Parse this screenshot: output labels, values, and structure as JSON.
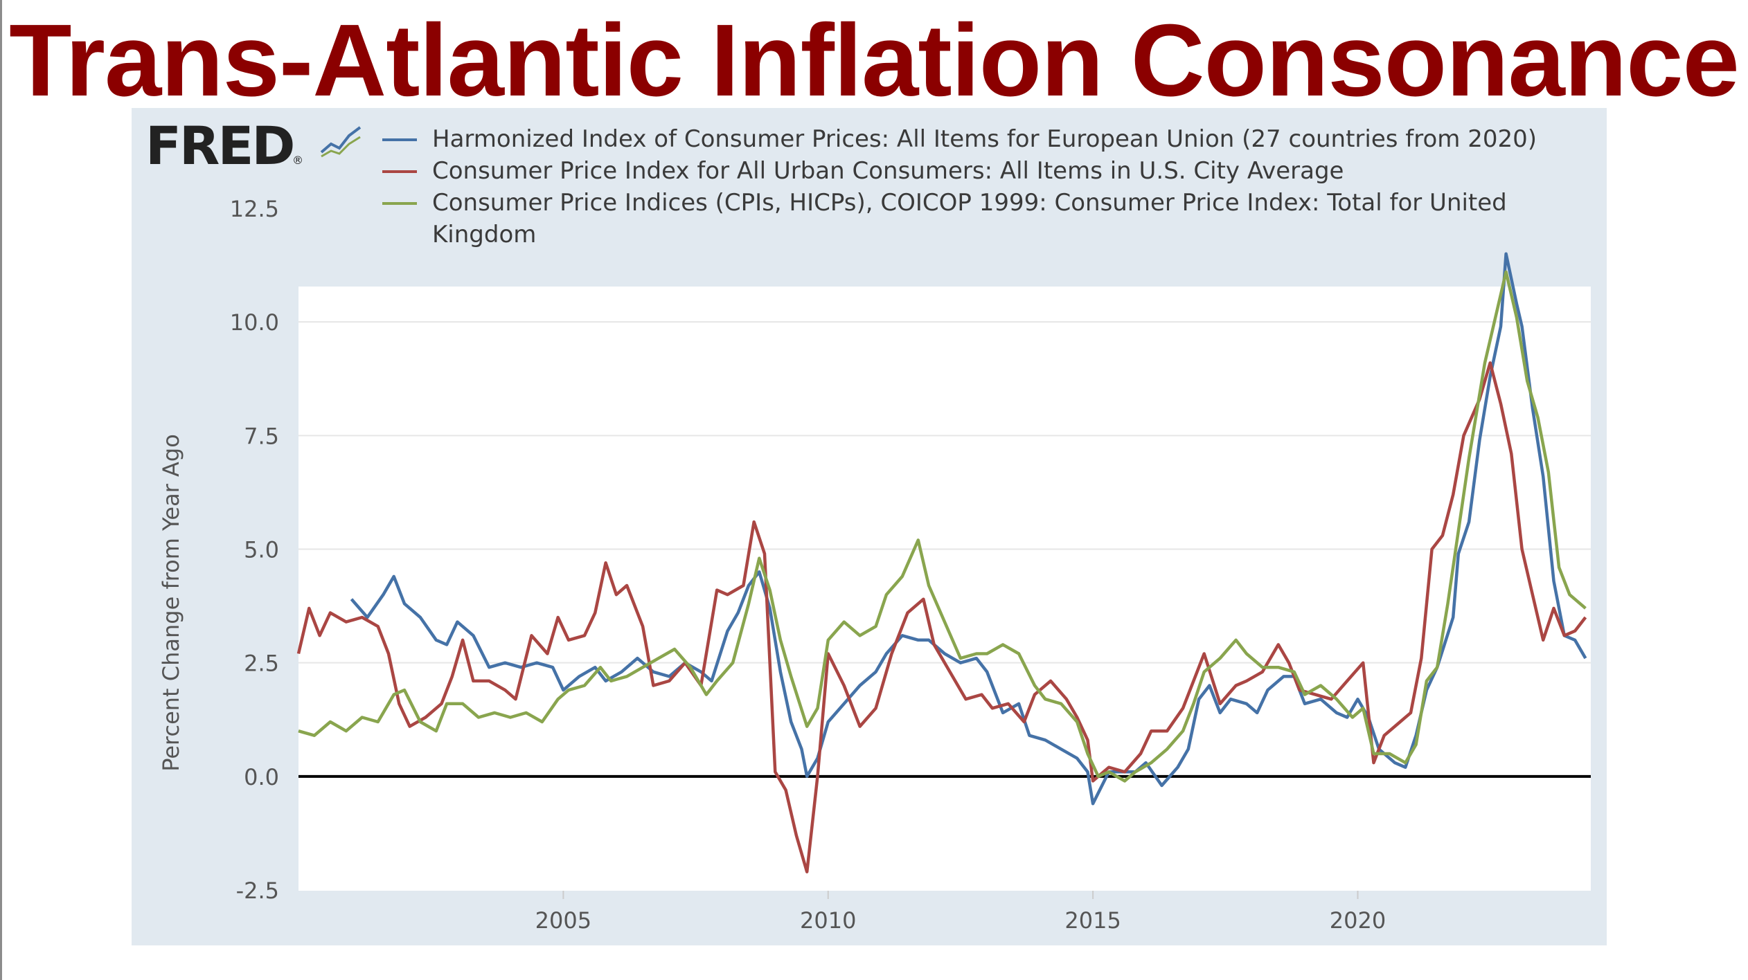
{
  "slide_title": "Trans-Atlantic Inflation Consonance",
  "fred_logo": "FRED",
  "colors": {
    "title": "#8b0000",
    "eu": "#4572a7",
    "us": "#aa4643",
    "uk": "#89a54e",
    "panel": "#e1e9f0"
  },
  "chart_data": {
    "type": "line",
    "title": "",
    "xlabel": "",
    "ylabel": "Percent Change from Year Ago",
    "xlim": [
      2000.0,
      2024.4
    ],
    "ylim": [
      -2.5,
      12.5
    ],
    "yticks": [
      -2.5,
      0.0,
      2.5,
      5.0,
      7.5,
      10.0,
      12.5
    ],
    "ytick_labels": [
      "-2.5",
      "0.0",
      "2.5",
      "5.0",
      "7.5",
      "10.0",
      "12.5"
    ],
    "xticks": [
      2005,
      2010,
      2015,
      2020
    ],
    "xtick_labels": [
      "2005",
      "2010",
      "2015",
      "2020"
    ],
    "zero_line": true,
    "legend_position": "top",
    "series": [
      {
        "name": "Harmonized Index of Consumer Prices: All Items for European Union (27 countries from 2020)",
        "color": "#4572a7",
        "points": [
          [
            2001.0,
            3.9
          ],
          [
            2001.3,
            3.5
          ],
          [
            2001.6,
            4.0
          ],
          [
            2001.8,
            4.4
          ],
          [
            2002.0,
            3.8
          ],
          [
            2002.3,
            3.5
          ],
          [
            2002.6,
            3.0
          ],
          [
            2002.8,
            2.9
          ],
          [
            2003.0,
            3.4
          ],
          [
            2003.3,
            3.1
          ],
          [
            2003.6,
            2.4
          ],
          [
            2003.9,
            2.5
          ],
          [
            2004.2,
            2.4
          ],
          [
            2004.5,
            2.5
          ],
          [
            2004.8,
            2.4
          ],
          [
            2005.0,
            1.9
          ],
          [
            2005.3,
            2.2
          ],
          [
            2005.6,
            2.4
          ],
          [
            2005.8,
            2.1
          ],
          [
            2006.1,
            2.3
          ],
          [
            2006.4,
            2.6
          ],
          [
            2006.7,
            2.3
          ],
          [
            2007.0,
            2.2
          ],
          [
            2007.3,
            2.5
          ],
          [
            2007.6,
            2.3
          ],
          [
            2007.8,
            2.1
          ],
          [
            2008.1,
            3.2
          ],
          [
            2008.3,
            3.6
          ],
          [
            2008.5,
            4.2
          ],
          [
            2008.7,
            4.5
          ],
          [
            2008.9,
            3.7
          ],
          [
            2009.1,
            2.3
          ],
          [
            2009.3,
            1.2
          ],
          [
            2009.5,
            0.6
          ],
          [
            2009.6,
            0.0
          ],
          [
            2009.8,
            0.4
          ],
          [
            2010.0,
            1.2
          ],
          [
            2010.3,
            1.6
          ],
          [
            2010.6,
            2.0
          ],
          [
            2010.9,
            2.3
          ],
          [
            2011.1,
            2.7
          ],
          [
            2011.4,
            3.1
          ],
          [
            2011.7,
            3.0
          ],
          [
            2011.9,
            3.0
          ],
          [
            2012.2,
            2.7
          ],
          [
            2012.5,
            2.5
          ],
          [
            2012.8,
            2.6
          ],
          [
            2013.0,
            2.3
          ],
          [
            2013.3,
            1.4
          ],
          [
            2013.6,
            1.6
          ],
          [
            2013.8,
            0.9
          ],
          [
            2014.1,
            0.8
          ],
          [
            2014.4,
            0.6
          ],
          [
            2014.7,
            0.4
          ],
          [
            2014.9,
            0.1
          ],
          [
            2015.0,
            -0.6
          ],
          [
            2015.3,
            0.1
          ],
          [
            2015.6,
            0.1
          ],
          [
            2015.8,
            0.1
          ],
          [
            2016.0,
            0.3
          ],
          [
            2016.3,
            -0.2
          ],
          [
            2016.6,
            0.2
          ],
          [
            2016.8,
            0.6
          ],
          [
            2017.0,
            1.7
          ],
          [
            2017.2,
            2.0
          ],
          [
            2017.4,
            1.4
          ],
          [
            2017.6,
            1.7
          ],
          [
            2017.9,
            1.6
          ],
          [
            2018.1,
            1.4
          ],
          [
            2018.3,
            1.9
          ],
          [
            2018.6,
            2.2
          ],
          [
            2018.8,
            2.2
          ],
          [
            2019.0,
            1.6
          ],
          [
            2019.3,
            1.7
          ],
          [
            2019.6,
            1.4
          ],
          [
            2019.8,
            1.3
          ],
          [
            2020.0,
            1.7
          ],
          [
            2020.2,
            1.3
          ],
          [
            2020.4,
            0.6
          ],
          [
            2020.7,
            0.3
          ],
          [
            2020.9,
            0.2
          ],
          [
            2021.1,
            0.9
          ],
          [
            2021.3,
            1.9
          ],
          [
            2021.5,
            2.4
          ],
          [
            2021.8,
            3.5
          ],
          [
            2021.9,
            4.9
          ],
          [
            2022.1,
            5.6
          ],
          [
            2022.3,
            7.4
          ],
          [
            2022.5,
            8.8
          ],
          [
            2022.7,
            9.9
          ],
          [
            2022.8,
            11.5
          ],
          [
            2023.0,
            10.4
          ],
          [
            2023.1,
            9.9
          ],
          [
            2023.3,
            8.1
          ],
          [
            2023.5,
            6.6
          ],
          [
            2023.7,
            4.3
          ],
          [
            2023.9,
            3.1
          ],
          [
            2024.1,
            3.0
          ],
          [
            2024.3,
            2.6
          ]
        ]
      },
      {
        "name": "Consumer Price Index for All Urban Consumers: All Items in U.S. City Average",
        "color": "#aa4643",
        "points": [
          [
            2000.0,
            2.7
          ],
          [
            2000.2,
            3.7
          ],
          [
            2000.4,
            3.1
          ],
          [
            2000.6,
            3.6
          ],
          [
            2000.9,
            3.4
          ],
          [
            2001.2,
            3.5
          ],
          [
            2001.5,
            3.3
          ],
          [
            2001.7,
            2.7
          ],
          [
            2001.9,
            1.6
          ],
          [
            2002.1,
            1.1
          ],
          [
            2002.4,
            1.3
          ],
          [
            2002.7,
            1.6
          ],
          [
            2002.9,
            2.2
          ],
          [
            2003.1,
            3.0
          ],
          [
            2003.3,
            2.1
          ],
          [
            2003.6,
            2.1
          ],
          [
            2003.9,
            1.9
          ],
          [
            2004.1,
            1.7
          ],
          [
            2004.4,
            3.1
          ],
          [
            2004.7,
            2.7
          ],
          [
            2004.9,
            3.5
          ],
          [
            2005.1,
            3.0
          ],
          [
            2005.4,
            3.1
          ],
          [
            2005.6,
            3.6
          ],
          [
            2005.8,
            4.7
          ],
          [
            2006.0,
            4.0
          ],
          [
            2006.2,
            4.2
          ],
          [
            2006.5,
            3.3
          ],
          [
            2006.7,
            2.0
          ],
          [
            2007.0,
            2.1
          ],
          [
            2007.3,
            2.5
          ],
          [
            2007.6,
            2.0
          ],
          [
            2007.9,
            4.1
          ],
          [
            2008.1,
            4.0
          ],
          [
            2008.4,
            4.2
          ],
          [
            2008.6,
            5.6
          ],
          [
            2008.8,
            4.9
          ],
          [
            2009.0,
            0.1
          ],
          [
            2009.2,
            -0.3
          ],
          [
            2009.4,
            -1.3
          ],
          [
            2009.6,
            -2.1
          ],
          [
            2009.8,
            0.0
          ],
          [
            2010.0,
            2.7
          ],
          [
            2010.3,
            2.0
          ],
          [
            2010.6,
            1.1
          ],
          [
            2010.9,
            1.5
          ],
          [
            2011.2,
            2.7
          ],
          [
            2011.5,
            3.6
          ],
          [
            2011.8,
            3.9
          ],
          [
            2012.0,
            2.9
          ],
          [
            2012.3,
            2.3
          ],
          [
            2012.6,
            1.7
          ],
          [
            2012.9,
            1.8
          ],
          [
            2013.1,
            1.5
          ],
          [
            2013.4,
            1.6
          ],
          [
            2013.7,
            1.2
          ],
          [
            2013.9,
            1.8
          ],
          [
            2014.2,
            2.1
          ],
          [
            2014.5,
            1.7
          ],
          [
            2014.7,
            1.3
          ],
          [
            2014.9,
            0.8
          ],
          [
            2015.0,
            -0.1
          ],
          [
            2015.3,
            0.2
          ],
          [
            2015.6,
            0.1
          ],
          [
            2015.9,
            0.5
          ],
          [
            2016.1,
            1.0
          ],
          [
            2016.4,
            1.0
          ],
          [
            2016.7,
            1.5
          ],
          [
            2016.9,
            2.1
          ],
          [
            2017.1,
            2.7
          ],
          [
            2017.4,
            1.6
          ],
          [
            2017.7,
            2.0
          ],
          [
            2017.9,
            2.1
          ],
          [
            2018.2,
            2.3
          ],
          [
            2018.5,
            2.9
          ],
          [
            2018.7,
            2.5
          ],
          [
            2018.9,
            1.9
          ],
          [
            2019.2,
            1.8
          ],
          [
            2019.5,
            1.7
          ],
          [
            2019.8,
            2.1
          ],
          [
            2020.1,
            2.5
          ],
          [
            2020.3,
            0.3
          ],
          [
            2020.5,
            0.9
          ],
          [
            2020.8,
            1.2
          ],
          [
            2021.0,
            1.4
          ],
          [
            2021.2,
            2.6
          ],
          [
            2021.4,
            5.0
          ],
          [
            2021.6,
            5.3
          ],
          [
            2021.8,
            6.2
          ],
          [
            2022.0,
            7.5
          ],
          [
            2022.3,
            8.3
          ],
          [
            2022.5,
            9.1
          ],
          [
            2022.7,
            8.2
          ],
          [
            2022.9,
            7.1
          ],
          [
            2023.1,
            5.0
          ],
          [
            2023.3,
            4.0
          ],
          [
            2023.5,
            3.0
          ],
          [
            2023.7,
            3.7
          ],
          [
            2023.9,
            3.1
          ],
          [
            2024.1,
            3.2
          ],
          [
            2024.3,
            3.5
          ]
        ]
      },
      {
        "name": "Consumer Price Indices (CPIs, HICPs), COICOP 1999: Consumer Price Index: Total for United Kingdom",
        "color": "#89a54e",
        "points": [
          [
            2000.0,
            1.0
          ],
          [
            2000.3,
            0.9
          ],
          [
            2000.6,
            1.2
          ],
          [
            2000.9,
            1.0
          ],
          [
            2001.2,
            1.3
          ],
          [
            2001.5,
            1.2
          ],
          [
            2001.8,
            1.8
          ],
          [
            2002.0,
            1.9
          ],
          [
            2002.3,
            1.2
          ],
          [
            2002.6,
            1.0
          ],
          [
            2002.8,
            1.6
          ],
          [
            2003.1,
            1.6
          ],
          [
            2003.4,
            1.3
          ],
          [
            2003.7,
            1.4
          ],
          [
            2004.0,
            1.3
          ],
          [
            2004.3,
            1.4
          ],
          [
            2004.6,
            1.2
          ],
          [
            2004.9,
            1.7
          ],
          [
            2005.1,
            1.9
          ],
          [
            2005.4,
            2.0
          ],
          [
            2005.7,
            2.4
          ],
          [
            2005.9,
            2.1
          ],
          [
            2006.2,
            2.2
          ],
          [
            2006.5,
            2.4
          ],
          [
            2006.8,
            2.6
          ],
          [
            2007.1,
            2.8
          ],
          [
            2007.4,
            2.4
          ],
          [
            2007.7,
            1.8
          ],
          [
            2007.9,
            2.1
          ],
          [
            2008.2,
            2.5
          ],
          [
            2008.5,
            3.8
          ],
          [
            2008.7,
            4.8
          ],
          [
            2008.9,
            4.1
          ],
          [
            2009.1,
            3.0
          ],
          [
            2009.3,
            2.2
          ],
          [
            2009.6,
            1.1
          ],
          [
            2009.8,
            1.5
          ],
          [
            2010.0,
            3.0
          ],
          [
            2010.3,
            3.4
          ],
          [
            2010.6,
            3.1
          ],
          [
            2010.9,
            3.3
          ],
          [
            2011.1,
            4.0
          ],
          [
            2011.4,
            4.4
          ],
          [
            2011.7,
            5.2
          ],
          [
            2011.9,
            4.2
          ],
          [
            2012.2,
            3.4
          ],
          [
            2012.5,
            2.6
          ],
          [
            2012.8,
            2.7
          ],
          [
            2013.0,
            2.7
          ],
          [
            2013.3,
            2.9
          ],
          [
            2013.6,
            2.7
          ],
          [
            2013.9,
            2.0
          ],
          [
            2014.1,
            1.7
          ],
          [
            2014.4,
            1.6
          ],
          [
            2014.7,
            1.2
          ],
          [
            2014.9,
            0.5
          ],
          [
            2015.1,
            0.0
          ],
          [
            2015.3,
            0.1
          ],
          [
            2015.6,
            -0.1
          ],
          [
            2015.8,
            0.1
          ],
          [
            2016.1,
            0.3
          ],
          [
            2016.4,
            0.6
          ],
          [
            2016.7,
            1.0
          ],
          [
            2016.9,
            1.6
          ],
          [
            2017.1,
            2.3
          ],
          [
            2017.4,
            2.6
          ],
          [
            2017.7,
            3.0
          ],
          [
            2017.9,
            2.7
          ],
          [
            2018.2,
            2.4
          ],
          [
            2018.5,
            2.4
          ],
          [
            2018.8,
            2.3
          ],
          [
            2019.0,
            1.8
          ],
          [
            2019.3,
            2.0
          ],
          [
            2019.6,
            1.7
          ],
          [
            2019.9,
            1.3
          ],
          [
            2020.1,
            1.5
          ],
          [
            2020.3,
            0.5
          ],
          [
            2020.6,
            0.5
          ],
          [
            2020.9,
            0.3
          ],
          [
            2021.1,
            0.7
          ],
          [
            2021.3,
            2.1
          ],
          [
            2021.5,
            2.4
          ],
          [
            2021.7,
            3.8
          ],
          [
            2021.9,
            5.4
          ],
          [
            2022.1,
            7.0
          ],
          [
            2022.4,
            9.1
          ],
          [
            2022.6,
            10.1
          ],
          [
            2022.8,
            11.1
          ],
          [
            2023.0,
            10.1
          ],
          [
            2023.2,
            8.7
          ],
          [
            2023.4,
            7.9
          ],
          [
            2023.6,
            6.7
          ],
          [
            2023.8,
            4.6
          ],
          [
            2024.0,
            4.0
          ],
          [
            2024.2,
            3.8
          ],
          [
            2024.3,
            3.7
          ]
        ]
      }
    ]
  }
}
